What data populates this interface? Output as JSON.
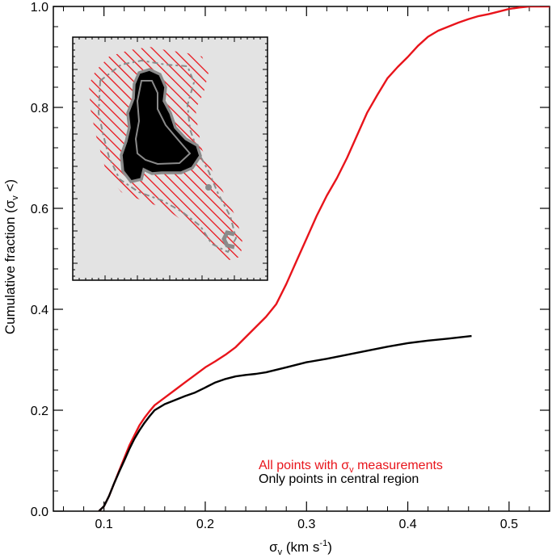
{
  "chart_data": {
    "type": "line",
    "title": "",
    "xlabel": {
      "sym": "σ",
      "sub": "v",
      "pre": " (km s",
      "sup": "-1",
      "post": ")"
    },
    "ylabel": {
      "pre": "Cumulative fraction (",
      "sym": "σ",
      "sub": "v",
      "post": " <)"
    },
    "xlim": [
      0.05,
      0.54
    ],
    "ylim": [
      0.0,
      1.0
    ],
    "xticks": [
      {
        "v": 0.1,
        "label": "0.1"
      },
      {
        "v": 0.2,
        "label": "0.2"
      },
      {
        "v": 0.3,
        "label": "0.3"
      },
      {
        "v": 0.4,
        "label": "0.4"
      },
      {
        "v": 0.5,
        "label": "0.5"
      }
    ],
    "yticks": [
      {
        "v": 0.0,
        "label": "0.0"
      },
      {
        "v": 0.2,
        "label": "0.2"
      },
      {
        "v": 0.4,
        "label": "0.4"
      },
      {
        "v": 0.6,
        "label": "0.6"
      },
      {
        "v": 0.8,
        "label": "0.8"
      },
      {
        "v": 1.0,
        "label": "1.0"
      }
    ],
    "series": [
      {
        "name": "all",
        "color": "#e8141b",
        "x": [
          0.095,
          0.1,
          0.105,
          0.11,
          0.115,
          0.12,
          0.125,
          0.13,
          0.135,
          0.14,
          0.145,
          0.15,
          0.16,
          0.17,
          0.18,
          0.19,
          0.2,
          0.21,
          0.22,
          0.23,
          0.24,
          0.25,
          0.26,
          0.27,
          0.28,
          0.29,
          0.3,
          0.31,
          0.32,
          0.33,
          0.34,
          0.35,
          0.36,
          0.37,
          0.38,
          0.39,
          0.4,
          0.41,
          0.42,
          0.43,
          0.44,
          0.45,
          0.46,
          0.47,
          0.48,
          0.49,
          0.5,
          0.51,
          0.52,
          0.53,
          0.54
        ],
        "y": [
          0.0,
          0.01,
          0.03,
          0.055,
          0.08,
          0.105,
          0.13,
          0.15,
          0.17,
          0.185,
          0.198,
          0.21,
          0.225,
          0.24,
          0.255,
          0.27,
          0.285,
          0.297,
          0.31,
          0.325,
          0.345,
          0.365,
          0.385,
          0.41,
          0.45,
          0.495,
          0.54,
          0.585,
          0.625,
          0.66,
          0.7,
          0.745,
          0.79,
          0.825,
          0.858,
          0.88,
          0.9,
          0.922,
          0.94,
          0.952,
          0.96,
          0.968,
          0.975,
          0.981,
          0.985,
          0.99,
          0.995,
          0.998,
          1.0,
          1.0,
          1.0
        ]
      },
      {
        "name": "central",
        "color": "#000000",
        "x": [
          0.095,
          0.1,
          0.105,
          0.11,
          0.115,
          0.12,
          0.125,
          0.13,
          0.135,
          0.14,
          0.145,
          0.15,
          0.16,
          0.17,
          0.18,
          0.19,
          0.2,
          0.21,
          0.22,
          0.23,
          0.24,
          0.25,
          0.26,
          0.28,
          0.3,
          0.32,
          0.34,
          0.36,
          0.38,
          0.4,
          0.42,
          0.44,
          0.463
        ],
        "y": [
          0.0,
          0.01,
          0.03,
          0.055,
          0.078,
          0.1,
          0.123,
          0.143,
          0.16,
          0.175,
          0.188,
          0.2,
          0.212,
          0.22,
          0.228,
          0.235,
          0.245,
          0.255,
          0.262,
          0.267,
          0.27,
          0.272,
          0.275,
          0.285,
          0.295,
          0.302,
          0.31,
          0.318,
          0.326,
          0.333,
          0.338,
          0.342,
          0.347
        ]
      }
    ],
    "legend": {
      "placement": "bottom-right",
      "all": {
        "pre": "All points with ",
        "sym": "σ",
        "sub": "v",
        "post": " measurements",
        "color": "#e8141b"
      },
      "central": {
        "text": "Only points in central region",
        "color": "#000000"
      }
    },
    "inset": {
      "placement": "top-left",
      "background": "#e3e3e3",
      "hatch_color": "#e8141b",
      "core_color": "#000000",
      "contour_color": "#8a8a8a"
    }
  }
}
